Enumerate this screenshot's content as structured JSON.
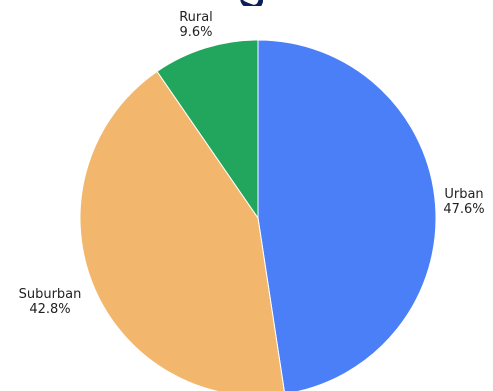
{
  "chart_data": {
    "type": "pie",
    "slices": [
      {
        "label": "Urban",
        "value": 47.6,
        "value_label": "47.6%",
        "color": "#4a7ff7"
      },
      {
        "label": "Suburban",
        "value": 42.8,
        "value_label": "42.8%",
        "color": "#f2b76c"
      },
      {
        "label": "Rural",
        "value": 9.6,
        "value_label": "9.6%",
        "color": "#22a65e"
      }
    ],
    "start_angle": "12 o'clock",
    "direction": "clockwise",
    "legend": "none",
    "label_placement": "outside"
  }
}
